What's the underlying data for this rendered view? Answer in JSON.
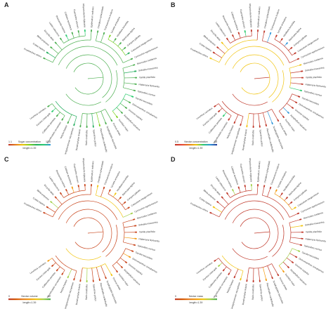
{
  "panels": [
    {
      "label": "A",
      "legend_low": "1.1",
      "legend_title": "Sugar concentration",
      "legend_high": "17.5",
      "legend_length": "length=1.39",
      "palette": [
        "#c0392b",
        "#e67e22",
        "#f1c40f",
        "#7ed321",
        "#27ae60",
        "#2ecc71",
        "#3498db"
      ],
      "base_color": "#4caf50",
      "leaves": [
        "Prosthechea citrina",
        "Coelia triptera",
        "Bletia purpurea",
        "Encyclia alata",
        "Laelia rubescens",
        "Brassavola nodosa",
        "Cattleya aurantiaca",
        "Guarianthe skinneri",
        "Rhyncholaelia digbyana",
        "Epidendrum radicans",
        "Oncidium sphacelatum",
        "Trichocentrum luridum",
        "Lycaste aromatica",
        "Maxillaria tenuifolia",
        "Stanhopea tigrina",
        "Gongora galeata",
        "Catasetum integerrimum",
        "Cycnoches egertonianum",
        "Mormodes tuxtlensis",
        "Sobralia macrantha",
        "Vanilla planifolia",
        "Habenaria floribunda",
        "Spiranthes cernua",
        "Sacoila lanceolata",
        "Dichromanthus cinnabarinus",
        "Govenia superba",
        "Arpophyllum spicatum",
        "Isochilus major",
        "Ponera striata",
        "Scaphyglottis fasciculata",
        "Pleurothallis cardiothallis",
        "Specklinia grobyi",
        "Stelis ovatilabia",
        "Dendrophylax lindenii",
        "Campylocentrum micranthum",
        "Notylia barkeri",
        "Rhynchostele cervantesii",
        "Cuitlauzina pendula",
        "Erycina crista-galli",
        "Leochilus carinatus"
      ]
    },
    {
      "label": "B",
      "legend_low": "0.5",
      "legend_title": "Nectar concentration",
      "legend_high": "33",
      "legend_length": "length=1.39",
      "palette": [
        "#c0392b",
        "#e74c3c",
        "#e67e22",
        "#f1c40f",
        "#2ecc71",
        "#3498db",
        "#2c3e99"
      ],
      "base_color": "#c0392b",
      "leaves": [
        "Prosthechea citrina",
        "Coelia triptera",
        "Bletia purpurea",
        "Encyclia alata",
        "Laelia rubescens",
        "Brassavola nodosa",
        "Cattleya aurantiaca",
        "Guarianthe skinneri",
        "Rhyncholaelia digbyana",
        "Epidendrum radicans",
        "Oncidium sphacelatum",
        "Trichocentrum luridum",
        "Lycaste aromatica",
        "Maxillaria tenuifolia",
        "Stanhopea tigrina",
        "Gongora galeata",
        "Catasetum integerrimum",
        "Cycnoches egertonianum",
        "Mormodes tuxtlensis",
        "Sobralia macrantha",
        "Vanilla planifolia",
        "Habenaria floribunda",
        "Spiranthes cernua",
        "Sacoila lanceolata",
        "Dichromanthus cinnabarinus",
        "Govenia superba",
        "Arpophyllum spicatum",
        "Isochilus major",
        "Ponera striata",
        "Scaphyglottis fasciculata",
        "Pleurothallis cardiothallis",
        "Specklinia grobyi",
        "Stelis ovatilabia",
        "Dendrophylax lindenii",
        "Campylocentrum micranthum",
        "Notylia barkeri",
        "Rhynchostele cervantesii",
        "Cuitlauzina pendula",
        "Erycina crista-galli",
        "Leochilus carinatus"
      ]
    },
    {
      "label": "C",
      "legend_low": "0",
      "legend_title": "Nectar volume",
      "legend_high": "12",
      "legend_length": "length=1.39",
      "palette": [
        "#c0392b",
        "#d35400",
        "#e67e22",
        "#f39c12",
        "#f1c40f",
        "#a3d14b",
        "#4caf50"
      ],
      "base_color": "#c9471f",
      "leaves": [
        "Prosthechea citrina",
        "Coelia triptera",
        "Bletia purpurea",
        "Encyclia alata",
        "Laelia rubescens",
        "Brassavola nodosa",
        "Cattleya aurantiaca",
        "Guarianthe skinneri",
        "Rhyncholaelia digbyana",
        "Epidendrum radicans",
        "Oncidium sphacelatum",
        "Trichocentrum luridum",
        "Lycaste aromatica",
        "Maxillaria tenuifolia",
        "Stanhopea tigrina",
        "Gongora galeata",
        "Catasetum integerrimum",
        "Cycnoches egertonianum",
        "Mormodes tuxtlensis",
        "Sobralia macrantha",
        "Vanilla planifolia",
        "Habenaria floribunda",
        "Spiranthes cernua",
        "Sacoila lanceolata",
        "Dichromanthus cinnabarinus",
        "Govenia superba",
        "Arpophyllum spicatum",
        "Isochilus major",
        "Ponera striata",
        "Scaphyglottis fasciculata",
        "Pleurothallis cardiothallis",
        "Specklinia grobyi",
        "Stelis ovatilabia",
        "Dendrophylax lindenii",
        "Campylocentrum micranthum",
        "Notylia barkeri",
        "Rhynchostele cervantesii",
        "Cuitlauzina pendula",
        "Erycina crista-galli",
        "Leochilus carinatus"
      ]
    },
    {
      "label": "D",
      "legend_low": "0",
      "legend_title": "Nectar mass",
      "legend_high": "4",
      "legend_length": "length=1.39",
      "palette": [
        "#c0392b",
        "#d35400",
        "#e67e22",
        "#f39c12",
        "#f1c40f",
        "#a3d14b",
        "#4caf50"
      ],
      "base_color": "#c0392b",
      "leaves": [
        "Prosthechea citrina",
        "Coelia triptera",
        "Bletia purpurea",
        "Encyclia alata",
        "Laelia rubescens",
        "Brassavola nodosa",
        "Cattleya aurantiaca",
        "Guarianthe skinneri",
        "Rhyncholaelia digbyana",
        "Epidendrum radicans",
        "Oncidium sphacelatum",
        "Trichocentrum luridum",
        "Lycaste aromatica",
        "Maxillaria tenuifolia",
        "Stanhopea tigrina",
        "Gongora galeata",
        "Catasetum integerrimum",
        "Cycnoches egertonianum",
        "Mormodes tuxtlensis",
        "Sobralia macrantha",
        "Vanilla planifolia",
        "Habenaria floribunda",
        "Spiranthes cernua",
        "Sacoila lanceolata",
        "Dichromanthus cinnabarinus",
        "Govenia superba",
        "Arpophyllum spicatum",
        "Isochilus major",
        "Ponera striata",
        "Scaphyglottis fasciculata",
        "Pleurothallis cardiothallis",
        "Specklinia grobyi",
        "Stelis ovatilabia",
        "Dendrophylax lindenii",
        "Campylocentrum micranthum",
        "Notylia barkeri",
        "Rhynchostele cervantesii",
        "Cuitlauzina pendula",
        "Erycina crista-galli",
        "Leochilus carinatus"
      ]
    }
  ]
}
